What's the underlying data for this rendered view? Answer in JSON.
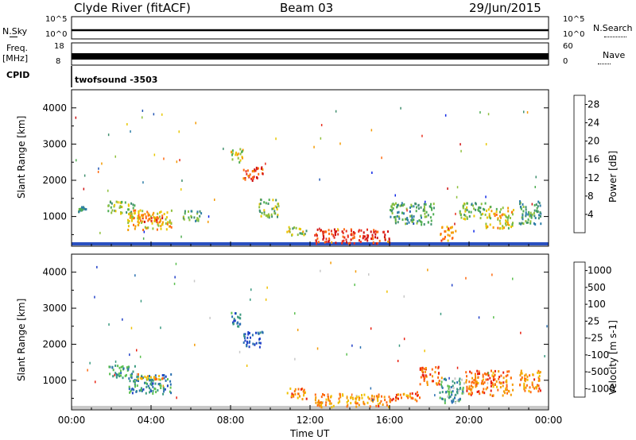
{
  "header": {
    "station": "Clyde River (fitACF)",
    "beam": "Beam 03",
    "date": "29/Jun/2015"
  },
  "top_panels": {
    "nsky_label": "N.Sky",
    "nsky_ticks": [
      "10^5",
      "10^0"
    ],
    "nsearch_label": "N.Search",
    "nsearch_ticks": [
      "10^5",
      "10^0"
    ],
    "freq_label": "Freq.",
    "freq_unit": "[MHz]",
    "freq_ticks": [
      "18",
      "8"
    ],
    "nave_label": "Nave",
    "nave_ticks": [
      "60",
      "0"
    ],
    "cpid_label": "CPID",
    "cpid_value": "twofsound -3503"
  },
  "chart_data": [
    {
      "type": "heatmap",
      "name": "power-panel",
      "ylabel": "Slant Range [km]",
      "colorbar_label": "Power [dB]",
      "yticks": [
        1000,
        2000,
        3000,
        4000
      ],
      "ylim": [
        180,
        4500
      ],
      "xlim": [
        0,
        24
      ],
      "colorbar_ticks": [
        "4",
        "8",
        "12",
        "16",
        "20",
        "24",
        "28"
      ],
      "colorbar_colors": [
        "#0a24e6",
        "#2356b4",
        "#2e7ea8",
        "#3f8f6e",
        "#4fae52",
        "#8fc03c",
        "#e8c800",
        "#f49a00",
        "#ff6a10",
        "#e83020",
        "#d01010"
      ],
      "regions": [
        {
          "t0": 0.3,
          "t1": 0.7,
          "r0": 1150,
          "r1": 1300,
          "level": 0.35
        },
        {
          "t0": 1.8,
          "t1": 3.2,
          "r0": 1100,
          "r1": 1450,
          "level": 0.45
        },
        {
          "t0": 2.8,
          "t1": 5.0,
          "r0": 650,
          "r1": 1200,
          "level": 0.65
        },
        {
          "t0": 3.2,
          "t1": 4.6,
          "r0": 850,
          "r1": 1050,
          "level": 0.8
        },
        {
          "t0": 5.5,
          "t1": 6.5,
          "r0": 900,
          "r1": 1200,
          "level": 0.4
        },
        {
          "t0": 8.0,
          "t1": 8.6,
          "r0": 2500,
          "r1": 2900,
          "level": 0.55
        },
        {
          "t0": 8.6,
          "t1": 9.6,
          "r0": 2000,
          "r1": 2400,
          "level": 0.85
        },
        {
          "t0": 9.4,
          "t1": 10.4,
          "r0": 1000,
          "r1": 1500,
          "level": 0.45
        },
        {
          "t0": 10.8,
          "t1": 11.8,
          "r0": 500,
          "r1": 750,
          "level": 0.5
        },
        {
          "t0": 12.2,
          "t1": 16.0,
          "r0": 280,
          "r1": 680,
          "level": 0.9
        },
        {
          "t0": 16.0,
          "t1": 18.2,
          "r0": 800,
          "r1": 1400,
          "level": 0.35
        },
        {
          "t0": 18.5,
          "t1": 19.3,
          "r0": 350,
          "r1": 750,
          "level": 0.7
        },
        {
          "t0": 19.5,
          "t1": 20.8,
          "r0": 950,
          "r1": 1400,
          "level": 0.45
        },
        {
          "t0": 20.8,
          "t1": 22.2,
          "r0": 700,
          "r1": 1300,
          "level": 0.6
        },
        {
          "t0": 22.5,
          "t1": 23.6,
          "r0": 800,
          "r1": 1500,
          "level": 0.35
        }
      ]
    },
    {
      "type": "heatmap",
      "name": "velocity-panel",
      "ylabel": "Slant Range [km]",
      "xlabel": "Time UT",
      "colorbar_label": "Velocity [m s-1]",
      "yticks": [
        1000,
        2000,
        3000,
        4000
      ],
      "ylim": [
        180,
        4500
      ],
      "xlim": [
        0,
        24
      ],
      "xticks": [
        "00:00",
        "04:00",
        "08:00",
        "12:00",
        "16:00",
        "20:00",
        "00:00"
      ],
      "colorbar_ticks": [
        "1000",
        "500",
        "100",
        "25",
        "-25",
        "-100",
        "-500",
        "-1000"
      ],
      "colorbar_colors": [
        "#2040c8",
        "#2a70b0",
        "#3a9a80",
        "#5cc050",
        "#c8c8c8",
        "#f0c000",
        "#f49a00",
        "#ff6a10",
        "#e82010"
      ],
      "regions": [
        {
          "t0": 1.8,
          "t1": 3.2,
          "r0": 1100,
          "r1": 1450,
          "level": 0.3
        },
        {
          "t0": 2.8,
          "t1": 5.0,
          "r0": 650,
          "r1": 1200,
          "level": 0.25
        },
        {
          "t0": 3.2,
          "t1": 4.6,
          "r0": 1050,
          "r1": 1200,
          "level": 0.7
        },
        {
          "t0": 8.0,
          "t1": 8.6,
          "r0": 2500,
          "r1": 2900,
          "level": 0.2
        },
        {
          "t0": 8.6,
          "t1": 9.6,
          "r0": 1950,
          "r1": 2400,
          "level": 0.1
        },
        {
          "t0": 10.8,
          "t1": 11.8,
          "r0": 500,
          "r1": 800,
          "level": 0.75
        },
        {
          "t0": 12.2,
          "t1": 16.0,
          "r0": 280,
          "r1": 650,
          "level": 0.72
        },
        {
          "t0": 16.0,
          "t1": 17.5,
          "r0": 450,
          "r1": 700,
          "level": 0.8
        },
        {
          "t0": 17.5,
          "t1": 18.6,
          "r0": 900,
          "r1": 1400,
          "level": 0.85
        },
        {
          "t0": 18.5,
          "t1": 19.8,
          "r0": 400,
          "r1": 1100,
          "level": 0.35
        },
        {
          "t0": 19.8,
          "t1": 22.2,
          "r0": 600,
          "r1": 1300,
          "level": 0.8
        },
        {
          "t0": 22.5,
          "t1": 23.6,
          "r0": 700,
          "r1": 1300,
          "level": 0.75
        }
      ]
    }
  ]
}
